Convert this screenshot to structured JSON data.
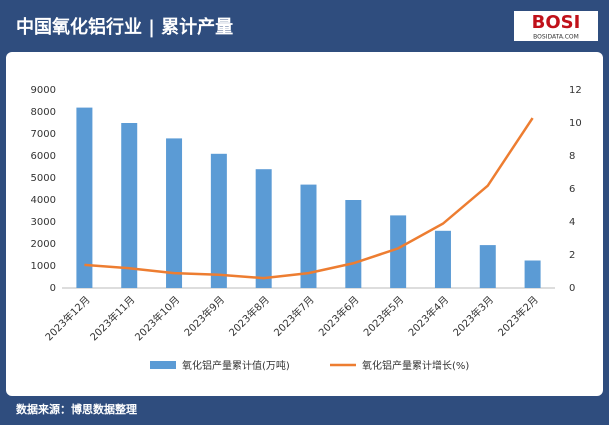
{
  "chart_data": {
    "type": "bar-line",
    "title": "中国氧化铝行业 | 累计产量",
    "logo": "BOSI",
    "logo_url": "BOSIDATA.COM",
    "source": "数据来源：博思数据整理",
    "categories": [
      "2023年12月",
      "2023年11月",
      "2023年10月",
      "2023年9月",
      "2023年8月",
      "2023年7月",
      "2023年6月",
      "2023年5月",
      "2023年4月",
      "2023年3月",
      "2023年2月"
    ],
    "series": [
      {
        "name": "氧化铝产量累计值(万吨)",
        "type": "bar",
        "color": "#5b9bd5",
        "values": [
          8200,
          7500,
          6800,
          6100,
          5400,
          4700,
          4000,
          3300,
          2600,
          1950,
          1250
        ]
      },
      {
        "name": "氧化铝产量累计增长(%)",
        "type": "line",
        "axis": "y2",
        "color": "#ed7d31",
        "values": [
          1.4,
          1.2,
          0.9,
          0.8,
          0.6,
          0.9,
          1.5,
          2.4,
          3.9,
          6.2,
          10.3
        ]
      }
    ],
    "ylim": [
      0,
      9000
    ],
    "yticks": [
      0,
      1000,
      2000,
      3000,
      4000,
      5000,
      6000,
      7000,
      8000,
      9000
    ],
    "y2lim": [
      0,
      12
    ],
    "y2ticks": [
      0,
      2,
      4,
      6,
      8,
      10,
      12
    ],
    "grid": false
  }
}
